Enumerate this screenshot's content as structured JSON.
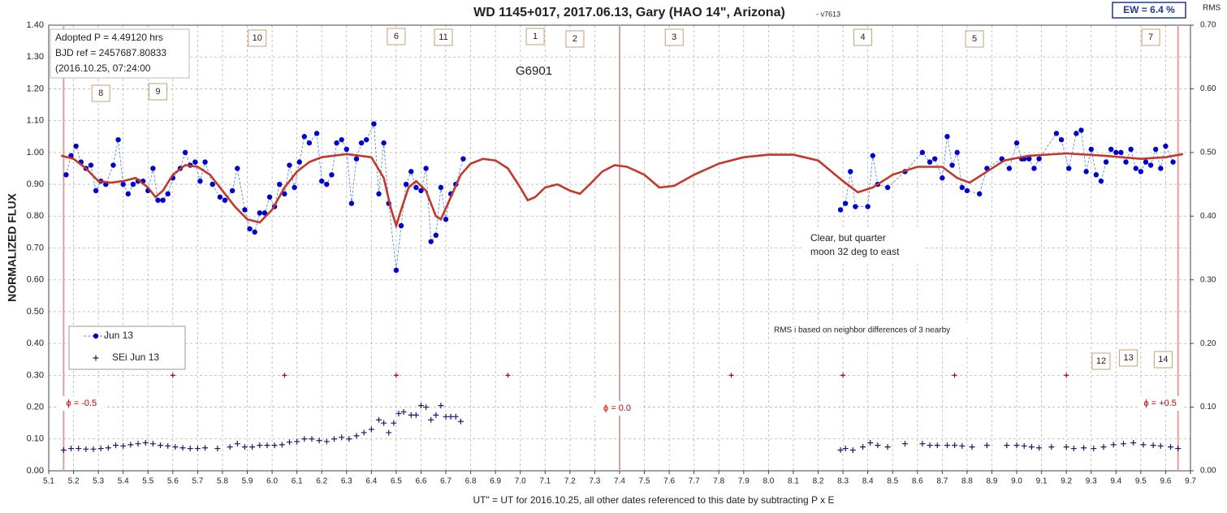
{
  "chart_data": {
    "type": "scatter",
    "title": "WD 1145+017, 2017.06.13, Gary (HAO 14\", Arizona)",
    "subtitle": "- v7613",
    "badge": "EW = 6.4 %",
    "y2_label": "RMS",
    "y_label": "NORMALIZED FLUX",
    "x_label": "UT\" = UT for 2016.10.25, all other dates referenced to this date by subtracting P x E",
    "info_lines": [
      "Adopted P = 4.49120  hrs",
      "BJD ref = 2457687.80833",
      "(2016.10.25,  07:24:00"
    ],
    "annotations": {
      "object": "G6901",
      "weather": [
        "Clear, but quarter",
        "moon 32 deg to east"
      ],
      "rms_note": "RMS i based on neighbor differences of 3 nearby"
    },
    "xlim": [
      5.1,
      9.7
    ],
    "xticks": [
      5.1,
      5.2,
      5.3,
      5.4,
      5.5,
      5.6,
      5.7,
      5.8,
      5.9,
      {
        "value": 6,
        "label": "6.0"
      },
      6.1,
      6.2,
      6.3,
      6.4,
      6.5,
      6.6,
      6.7,
      6.8,
      6.9,
      {
        "value": 7,
        "label": "7.0"
      },
      7.1,
      7.2,
      7.3,
      7.4,
      7.5,
      7.6,
      7.7,
      7.8,
      7.9,
      {
        "value": 8,
        "label": "8.0"
      },
      8.1,
      8.2,
      8.3,
      8.4,
      8.5,
      8.6,
      8.7,
      8.8,
      8.9,
      {
        "value": 9,
        "label": "9.0"
      },
      9.1,
      9.2,
      9.3,
      9.4,
      9.5,
      9.6,
      9.7
    ],
    "ylim": [
      0,
      1.4
    ],
    "yticks": [
      {
        "value": 0,
        "label": "0.00"
      },
      {
        "value": 0.1,
        "label": "0.10"
      },
      {
        "value": 0.2,
        "label": "0.20"
      },
      {
        "value": 0.3,
        "label": "0.30"
      },
      {
        "value": 0.4,
        "label": "0.40"
      },
      {
        "value": 0.5,
        "label": "0.50"
      },
      {
        "value": 0.6,
        "label": "0.60"
      },
      {
        "value": 0.7,
        "label": "0.70"
      },
      {
        "value": 0.8,
        "label": "0.80"
      },
      {
        "value": 0.9,
        "label": "0.90"
      },
      {
        "value": 1,
        "label": "1.00"
      },
      {
        "value": 1.1,
        "label": "1.10"
      },
      {
        "value": 1.2,
        "label": "1.20"
      },
      {
        "value": 1.3,
        "label": "1.30"
      },
      {
        "value": 1.4,
        "label": "1.40"
      }
    ],
    "y2lim": [
      0,
      0.7
    ],
    "y2ticks": [
      {
        "value": 0,
        "label": "0.00"
      },
      {
        "value": 0.1,
        "label": "0.10"
      },
      {
        "value": 0.2,
        "label": "0.20"
      },
      {
        "value": 0.3,
        "label": "0.30"
      },
      {
        "value": 0.4,
        "label": "0.40"
      },
      {
        "value": 0.5,
        "label": "0.50"
      },
      {
        "value": 0.6,
        "label": "0.60"
      },
      {
        "value": 0.7,
        "label": "0.70"
      }
    ],
    "grid": true,
    "phase_markers": [
      {
        "x": 5.16,
        "label": "ϕ = -0.5"
      },
      {
        "x": 7.4,
        "label": "ϕ = 0.0"
      },
      {
        "x": 9.65,
        "label": "ϕ = +0.5"
      }
    ],
    "dip_labels": [
      {
        "label": "8",
        "x": 5.31
      },
      {
        "label": "9",
        "x": 5.54
      },
      {
        "label": "10",
        "x": 5.94
      },
      {
        "label": "6",
        "x": 6.5
      },
      {
        "label": "11",
        "x": 6.69
      },
      {
        "label": "1",
        "x": 7.06
      },
      {
        "label": "2",
        "x": 7.22
      },
      {
        "label": "3",
        "x": 7.62
      },
      {
        "label": "4",
        "x": 8.38
      },
      {
        "label": "5",
        "x": 8.83
      },
      {
        "label": "7",
        "x": 9.54
      },
      {
        "label": "12",
        "x": 9.34
      },
      {
        "label": "13",
        "x": 9.45
      },
      {
        "label": "14",
        "x": 9.59
      }
    ],
    "series": [
      {
        "name": "Jun 13",
        "style": "dots",
        "color": "#0000cc",
        "line_color": "#5b8fd5",
        "x": [
          5.17,
          5.19,
          5.21,
          5.23,
          5.25,
          5.27,
          5.29,
          5.31,
          5.33,
          5.36,
          5.38,
          5.4,
          5.42,
          5.44,
          5.46,
          5.48,
          5.5,
          5.52,
          5.54,
          5.56,
          5.58,
          5.6,
          5.63,
          5.65,
          5.67,
          5.69,
          5.71,
          5.73,
          5.76,
          5.79,
          5.81,
          5.84,
          5.86,
          5.89,
          5.91,
          5.93,
          5.95,
          5.97,
          5.99,
          6.01,
          6.03,
          6.05,
          6.07,
          6.09,
          6.11,
          6.13,
          6.15,
          6.18,
          6.2,
          6.22,
          6.24,
          6.26,
          6.28,
          6.3,
          6.32,
          6.34,
          6.36,
          6.38,
          6.41,
          6.43,
          6.45,
          6.47,
          6.5,
          6.52,
          6.54,
          6.56,
          6.58,
          6.6,
          6.62,
          6.64,
          6.66,
          6.68,
          6.7,
          6.72,
          6.74,
          6.77,
          null,
          8.29,
          8.31,
          8.33,
          8.35,
          8.4,
          8.42,
          8.44,
          8.48,
          8.55,
          8.62,
          8.65,
          8.67,
          8.7,
          8.72,
          8.74,
          8.76,
          8.78,
          8.8,
          8.85,
          8.88,
          8.94,
          8.97,
          9.0,
          9.02,
          9.03,
          9.05,
          9.07,
          9.09,
          9.16,
          9.18,
          9.21,
          9.24,
          9.26,
          9.28,
          9.3,
          9.32,
          9.34,
          9.36,
          9.38,
          9.4,
          9.42,
          9.44,
          9.46,
          9.48,
          9.5,
          9.52,
          9.54,
          9.56,
          9.58,
          9.6,
          9.63
        ],
        "values": [
          0.93,
          0.99,
          1.02,
          0.97,
          0.95,
          0.96,
          0.88,
          0.91,
          0.9,
          0.96,
          1.04,
          0.9,
          0.87,
          0.9,
          0.91,
          0.91,
          0.88,
          0.95,
          0.85,
          0.85,
          0.87,
          0.92,
          0.95,
          1.0,
          0.96,
          0.97,
          0.91,
          0.97,
          0.9,
          0.86,
          0.85,
          0.88,
          0.95,
          0.82,
          0.76,
          0.75,
          0.81,
          0.81,
          0.86,
          0.83,
          0.9,
          0.87,
          0.96,
          0.89,
          0.97,
          1.05,
          1.03,
          1.06,
          0.91,
          0.9,
          0.93,
          1.03,
          1.04,
          1.01,
          0.84,
          0.98,
          1.03,
          1.04,
          1.09,
          0.87,
          1.03,
          0.84,
          0.63,
          0.77,
          0.9,
          0.94,
          0.89,
          0.88,
          0.95,
          0.72,
          0.74,
          0.89,
          0.79,
          0.87,
          0.9,
          0.98,
          null,
          0.82,
          0.84,
          0.94,
          0.83,
          0.83,
          0.99,
          0.9,
          0.89,
          0.94,
          1.0,
          0.97,
          0.98,
          0.92,
          1.05,
          0.96,
          1.0,
          0.89,
          0.88,
          0.87,
          0.95,
          0.98,
          0.95,
          1.03,
          0.98,
          0.98,
          0.98,
          0.95,
          0.98,
          1.06,
          1.04,
          0.95,
          1.06,
          1.07,
          0.94,
          1.01,
          0.93,
          0.91,
          0.97,
          1.01,
          1.0,
          1.0,
          0.97,
          1.01,
          0.95,
          0.94,
          0.97,
          0.96,
          1.01,
          0.95,
          1.02,
          0.97
        ]
      },
      {
        "name": "SEi Jun 13",
        "style": "cross",
        "color": "#1a1a70",
        "x": [
          5.16,
          5.19,
          5.22,
          5.25,
          5.28,
          5.31,
          5.34,
          5.37,
          5.4,
          5.43,
          5.46,
          5.49,
          5.52,
          5.55,
          5.58,
          5.61,
          5.64,
          5.67,
          5.7,
          5.73,
          5.78,
          5.83,
          5.86,
          5.89,
          5.92,
          5.95,
          5.98,
          6.01,
          6.04,
          6.07,
          6.1,
          6.13,
          6.16,
          6.19,
          6.22,
          6.25,
          6.28,
          6.31,
          6.34,
          6.37,
          6.4,
          6.43,
          6.45,
          6.47,
          6.49,
          6.51,
          6.53,
          6.56,
          6.58,
          6.6,
          6.62,
          6.64,
          6.66,
          6.68,
          6.7,
          6.72,
          6.74,
          6.76,
          8.29,
          8.31,
          8.34,
          8.38,
          8.41,
          8.44,
          8.48,
          8.55,
          8.62,
          8.65,
          8.68,
          8.72,
          8.75,
          8.78,
          8.82,
          8.88,
          8.96,
          9.0,
          9.03,
          9.06,
          9.09,
          9.14,
          9.2,
          9.23,
          9.27,
          9.31,
          9.35,
          9.39,
          9.43,
          9.47,
          9.51,
          9.55,
          9.58,
          9.62,
          9.65
        ],
        "values": [
          0.065,
          0.07,
          0.07,
          0.068,
          0.068,
          0.07,
          0.072,
          0.08,
          0.078,
          0.082,
          0.085,
          0.088,
          0.085,
          0.08,
          0.078,
          0.075,
          0.072,
          0.07,
          0.07,
          0.072,
          0.07,
          0.075,
          0.085,
          0.075,
          0.075,
          0.08,
          0.08,
          0.08,
          0.082,
          0.09,
          0.092,
          0.1,
          0.1,
          0.095,
          0.092,
          0.1,
          0.105,
          0.1,
          0.11,
          0.12,
          0.13,
          0.16,
          0.15,
          0.12,
          0.15,
          0.18,
          0.185,
          0.175,
          0.175,
          0.205,
          0.2,
          0.16,
          0.175,
          0.205,
          0.17,
          0.17,
          0.17,
          0.155,
          0.065,
          0.07,
          0.065,
          0.075,
          0.088,
          0.08,
          0.075,
          0.085,
          0.085,
          0.08,
          0.08,
          0.08,
          0.08,
          0.078,
          0.075,
          0.08,
          0.08,
          0.08,
          0.078,
          0.075,
          0.072,
          0.075,
          0.075,
          0.07,
          0.072,
          0.07,
          0.075,
          0.082,
          0.085,
          0.088,
          0.082,
          0.08,
          0.078,
          0.075,
          0.07
        ]
      },
      {
        "style": "plus",
        "color": "#c00000",
        "x": [
          5.6,
          6.05,
          6.5,
          6.95,
          7.85,
          8.3,
          8.75,
          9.2
        ],
        "values": [
          0.3,
          0.3,
          0.3,
          0.3,
          0.3,
          0.3,
          0.3,
          0.3
        ]
      },
      {
        "style": "line",
        "color": "#c0392b",
        "x": [
          5.15,
          5.2,
          5.25,
          5.3,
          5.35,
          5.4,
          5.45,
          5.5,
          5.53,
          5.56,
          5.6,
          5.65,
          5.7,
          5.75,
          5.8,
          5.85,
          5.9,
          5.95,
          6.0,
          6.05,
          6.1,
          6.15,
          6.2,
          6.3,
          6.4,
          6.45,
          6.48,
          6.5,
          6.52,
          6.55,
          6.58,
          6.62,
          6.66,
          6.68,
          6.72,
          6.76,
          6.8,
          6.85,
          6.9,
          6.95,
          7.0,
          7.03,
          7.06,
          7.1,
          7.15,
          7.2,
          7.24,
          7.28,
          7.33,
          7.38,
          7.43,
          7.5,
          7.56,
          7.62,
          7.7,
          7.8,
          7.9,
          8.0,
          8.1,
          8.2,
          8.3,
          8.36,
          8.42,
          8.5,
          8.6,
          8.7,
          8.76,
          8.81,
          8.86,
          8.95,
          9.05,
          9.2,
          9.35,
          9.5,
          9.6,
          9.67
        ],
        "values": [
          0.99,
          0.98,
          0.95,
          0.91,
          0.905,
          0.91,
          0.92,
          0.89,
          0.86,
          0.88,
          0.93,
          0.96,
          0.955,
          0.93,
          0.88,
          0.83,
          0.79,
          0.78,
          0.82,
          0.89,
          0.94,
          0.97,
          0.985,
          0.995,
          0.985,
          0.92,
          0.82,
          0.77,
          0.82,
          0.89,
          0.91,
          0.88,
          0.8,
          0.79,
          0.86,
          0.93,
          0.965,
          0.98,
          0.975,
          0.95,
          0.89,
          0.85,
          0.86,
          0.89,
          0.9,
          0.88,
          0.87,
          0.9,
          0.94,
          0.96,
          0.955,
          0.93,
          0.89,
          0.895,
          0.93,
          0.965,
          0.985,
          0.993,
          0.993,
          0.975,
          0.91,
          0.875,
          0.89,
          0.93,
          0.955,
          0.955,
          0.92,
          0.905,
          0.93,
          0.975,
          0.99,
          0.997,
          0.99,
          0.98,
          0.985,
          0.995
        ]
      }
    ]
  }
}
